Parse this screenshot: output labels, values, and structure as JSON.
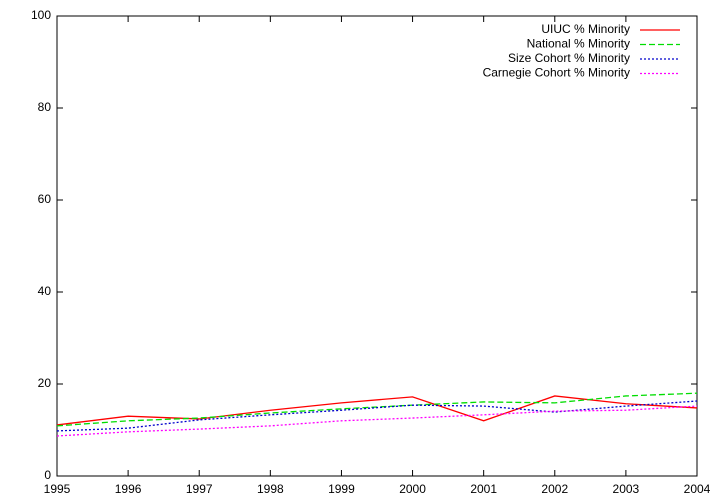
{
  "chart_data": {
    "type": "line",
    "x": [
      1995,
      1996,
      1997,
      1998,
      1999,
      2000,
      2001,
      2002,
      2003,
      2004
    ],
    "series": [
      {
        "name": "UIUC % Minority",
        "color": "#ff0000",
        "style": "solid",
        "values": [
          11.1,
          13.0,
          12.4,
          14.3,
          15.9,
          17.2,
          12.0,
          17.4,
          15.7,
          14.8
        ]
      },
      {
        "name": "National % Minority",
        "color": "#00dd00",
        "style": "dashed",
        "values": [
          10.9,
          12.0,
          12.6,
          13.7,
          14.6,
          15.4,
          16.1,
          15.9,
          17.4,
          18.0
        ]
      },
      {
        "name": "Size Cohort % Minority",
        "color": "#0000cc",
        "style": "dotted",
        "values": [
          9.8,
          10.4,
          12.2,
          13.3,
          14.3,
          15.4,
          15.2,
          13.9,
          15.2,
          16.3
        ]
      },
      {
        "name": "Carnegie Cohort % Minority",
        "color": "#ff00ff",
        "style": "dotted",
        "values": [
          8.7,
          9.6,
          10.2,
          10.9,
          12.0,
          12.6,
          13.3,
          14.1,
          14.3,
          15.2
        ]
      }
    ],
    "xlim": [
      1995,
      2004
    ],
    "xticks": [
      1995,
      1996,
      1997,
      1998,
      1999,
      2000,
      2001,
      2002,
      2003,
      2004
    ],
    "ylim": [
      0,
      100
    ],
    "yticks": [
      0,
      20,
      40,
      60,
      80,
      100
    ],
    "grid": false,
    "legend": "top-right"
  }
}
